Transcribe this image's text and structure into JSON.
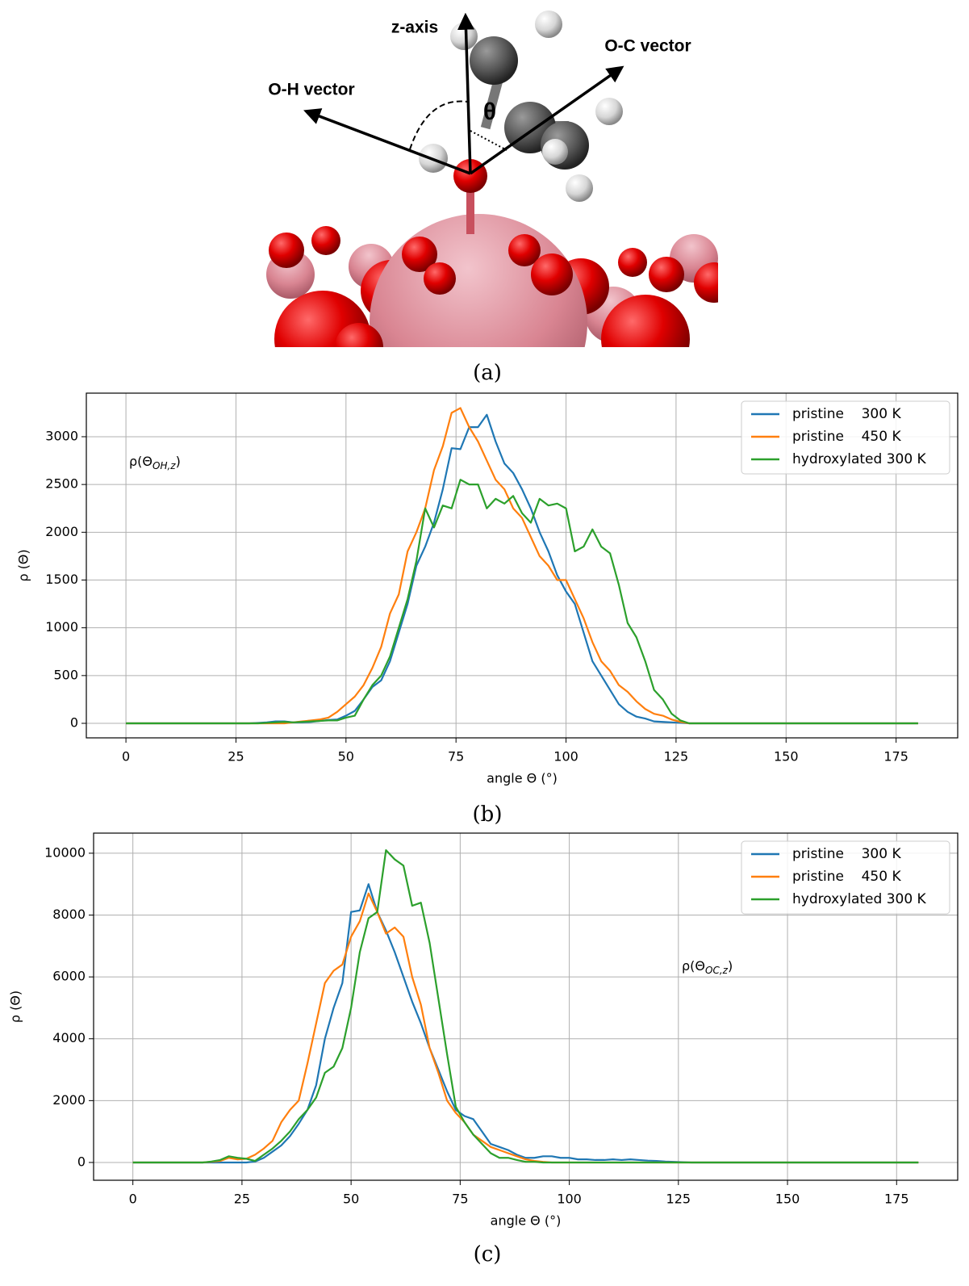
{
  "panel_a": {
    "labels": {
      "z_axis": "z-axis",
      "oc_vector": "O-C vector",
      "oh_vector": "O-H vector",
      "theta": "θ"
    },
    "caption": "(a)"
  },
  "chart_data": [
    {
      "type": "line",
      "caption": "(b)",
      "xlabel": "angle Θ (°)",
      "ylabel": "ρ (Θ)",
      "annotation": {
        "text": "ρ(Θ",
        "subscript": "OH,z",
        "tail": ")"
      },
      "xlim": [
        -9,
        189
      ],
      "ylim": [
        -152,
        3456
      ],
      "xticks": [
        0,
        25,
        50,
        75,
        100,
        125,
        150,
        175
      ],
      "yticks": [
        0,
        500,
        1000,
        1500,
        2000,
        2500,
        3000
      ],
      "grid": true,
      "legend": "upper right",
      "x": [
        0,
        10,
        20,
        28,
        30,
        32,
        34,
        36,
        38,
        40,
        42,
        44,
        46,
        48,
        50,
        52,
        54,
        56,
        58,
        60,
        62,
        64,
        66,
        68,
        70,
        72,
        74,
        76,
        78,
        80,
        82,
        84,
        86,
        88,
        90,
        92,
        94,
        96,
        98,
        100,
        102,
        104,
        106,
        108,
        110,
        112,
        114,
        116,
        118,
        120,
        122,
        124,
        126,
        128,
        130,
        140,
        150,
        160,
        170,
        180
      ],
      "series": [
        {
          "name": "pristine    300 K",
          "color": "#1f77b4",
          "values": [
            0,
            0,
            0,
            0,
            5,
            10,
            20,
            20,
            10,
            10,
            15,
            25,
            35,
            40,
            80,
            130,
            250,
            380,
            450,
            650,
            950,
            1250,
            1650,
            1850,
            2100,
            2450,
            2880,
            2870,
            3100,
            3100,
            3230,
            2950,
            2720,
            2620,
            2450,
            2250,
            2000,
            1800,
            1550,
            1380,
            1250,
            950,
            650,
            500,
            350,
            200,
            120,
            70,
            50,
            20,
            15,
            10,
            5,
            0,
            0,
            0,
            0,
            0,
            0,
            0
          ]
        },
        {
          "name": "pristine    450 K",
          "color": "#ff7f0e",
          "values": [
            0,
            0,
            0,
            0,
            0,
            0,
            0,
            0,
            10,
            20,
            30,
            40,
            60,
            120,
            200,
            280,
            400,
            580,
            800,
            1150,
            1350,
            1800,
            2000,
            2250,
            2650,
            2900,
            3250,
            3300,
            3100,
            2950,
            2750,
            2550,
            2450,
            2250,
            2150,
            1950,
            1750,
            1650,
            1500,
            1500,
            1300,
            1100,
            850,
            650,
            550,
            400,
            330,
            230,
            150,
            100,
            80,
            40,
            15,
            0,
            0,
            0,
            0,
            0,
            0,
            0
          ]
        },
        {
          "name": "hydroxylated 300 K",
          "color": "#2ca02c",
          "values": [
            0,
            0,
            0,
            0,
            0,
            5,
            10,
            15,
            10,
            15,
            20,
            25,
            30,
            30,
            60,
            80,
            250,
            400,
            500,
            700,
            1000,
            1300,
            1700,
            2250,
            2050,
            2280,
            2250,
            2550,
            2500,
            2500,
            2250,
            2350,
            2300,
            2380,
            2200,
            2100,
            2350,
            2280,
            2300,
            2250,
            1800,
            1850,
            2030,
            1850,
            1780,
            1450,
            1050,
            900,
            650,
            350,
            250,
            100,
            30,
            0,
            0,
            0,
            0,
            0,
            0,
            0
          ]
        }
      ]
    },
    {
      "type": "line",
      "caption": "(c)",
      "xlabel": "angle Θ (°)",
      "ylabel": "ρ (Θ)",
      "annotation": {
        "text": "ρ(Θ",
        "subscript": "OC,z",
        "tail": ")"
      },
      "xlim": [
        -9,
        189
      ],
      "ylim": [
        -575,
        10650
      ],
      "xticks": [
        0,
        25,
        50,
        75,
        100,
        125,
        150,
        175
      ],
      "yticks": [
        0,
        2000,
        4000,
        6000,
        8000,
        10000
      ],
      "grid": true,
      "legend": "upper right",
      "x": [
        0,
        10,
        16,
        18,
        20,
        22,
        24,
        26,
        28,
        30,
        32,
        34,
        36,
        38,
        40,
        42,
        44,
        46,
        48,
        50,
        52,
        54,
        56,
        58,
        60,
        62,
        64,
        66,
        68,
        70,
        72,
        74,
        76,
        78,
        80,
        82,
        84,
        86,
        88,
        90,
        92,
        94,
        96,
        98,
        100,
        102,
        104,
        106,
        108,
        110,
        112,
        114,
        116,
        118,
        120,
        122,
        124,
        126,
        128,
        130,
        140,
        150,
        160,
        170,
        180
      ],
      "series": [
        {
          "name": "pristine    300 K",
          "color": "#1f77b4",
          "values": [
            0,
            0,
            0,
            0,
            0,
            0,
            0,
            0,
            30,
            150,
            350,
            550,
            850,
            1250,
            1700,
            2500,
            4000,
            5000,
            5800,
            8100,
            8150,
            9000,
            8100,
            7500,
            6800,
            6000,
            5200,
            4500,
            3700,
            3000,
            2300,
            1700,
            1500,
            1400,
            1000,
            600,
            500,
            400,
            250,
            150,
            150,
            200,
            200,
            150,
            150,
            100,
            100,
            80,
            80,
            100,
            80,
            100,
            80,
            60,
            50,
            30,
            20,
            10,
            0,
            0,
            0,
            0,
            0,
            0,
            0
          ]
        },
        {
          "name": "pristine    450 K",
          "color": "#ff7f0e",
          "values": [
            0,
            0,
            0,
            20,
            50,
            150,
            100,
            120,
            250,
            450,
            700,
            1300,
            1700,
            2000,
            3200,
            4500,
            5800,
            6200,
            6400,
            7300,
            7800,
            8700,
            8100,
            7400,
            7600,
            7300,
            6000,
            5100,
            3700,
            2900,
            2000,
            1600,
            1300,
            900,
            700,
            500,
            400,
            300,
            200,
            100,
            50,
            20,
            0,
            0,
            0,
            0,
            0,
            0,
            0,
            0,
            0,
            0,
            0,
            0,
            0,
            0,
            0,
            0,
            0,
            0,
            0,
            0,
            0,
            0,
            0
          ]
        },
        {
          "name": "hydroxylated 300 K",
          "color": "#2ca02c",
          "values": [
            0,
            0,
            0,
            30,
            80,
            200,
            150,
            120,
            50,
            250,
            450,
            700,
            1000,
            1400,
            1700,
            2100,
            2900,
            3100,
            3700,
            5000,
            6800,
            7900,
            8100,
            10100,
            9800,
            9600,
            8300,
            8400,
            7100,
            5300,
            3500,
            1800,
            1300,
            900,
            600,
            300,
            150,
            150,
            80,
            20,
            20,
            0,
            0,
            0,
            0,
            0,
            0,
            0,
            0,
            0,
            0,
            0,
            0,
            0,
            0,
            0,
            0,
            0,
            0,
            0,
            0,
            0,
            0,
            0,
            0
          ]
        }
      ]
    }
  ]
}
